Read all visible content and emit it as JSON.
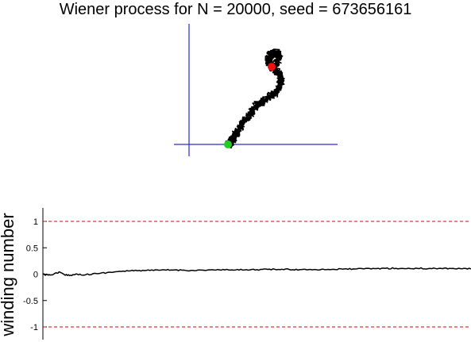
{
  "title": "Wiener process for N = 20000, seed = 673656161",
  "chart_data": [
    {
      "type": "line",
      "title": "Wiener process for N = 20000, seed = 673656161",
      "xlabel": "",
      "ylabel": "",
      "axes": "crosshair at origin, no ticks",
      "series": [
        {
          "description": "2D random walk path",
          "color": "#000000",
          "points": [
            [
              0.0,
              0.0
            ],
            [
              0.1,
              0.05
            ],
            [
              0.2,
              0.2
            ],
            [
              0.35,
              0.45
            ],
            [
              0.55,
              0.8
            ],
            [
              0.8,
              1.2
            ],
            [
              1.1,
              1.55
            ],
            [
              1.35,
              1.95
            ],
            [
              1.65,
              2.3
            ],
            [
              1.95,
              2.55
            ],
            [
              2.35,
              2.75
            ],
            [
              2.75,
              3.0
            ],
            [
              2.95,
              3.35
            ],
            [
              3.05,
              3.75
            ],
            [
              2.95,
              4.1
            ],
            [
              2.7,
              4.35
            ],
            [
              2.45,
              4.6
            ],
            [
              2.3,
              4.95
            ],
            [
              2.45,
              5.25
            ],
            [
              2.75,
              5.4
            ],
            [
              2.95,
              5.2
            ],
            [
              2.85,
              4.85
            ],
            [
              2.7,
              4.55
            ],
            [
              2.5,
              4.55
            ]
          ]
        }
      ],
      "markers": [
        {
          "name": "start",
          "color": "#22cc22",
          "point": [
            0.0,
            0.0
          ]
        },
        {
          "name": "end",
          "color": "#ee1111",
          "point": [
            2.5,
            4.55
          ]
        }
      ]
    },
    {
      "type": "line",
      "ylabel": "winding number",
      "xlabel": "",
      "ylim": [
        -1.2,
        1.2
      ],
      "xlim": [
        0,
        20000
      ],
      "yticks": [
        "1",
        "0.5",
        "0",
        "-0.5",
        "-1"
      ],
      "ytick_values": [
        1,
        0.5,
        0,
        -0.5,
        -1
      ],
      "reference_lines": [
        {
          "y": 1,
          "color": "#dd0000",
          "style": "dashed"
        },
        {
          "y": -1,
          "color": "#dd0000",
          "style": "dashed"
        }
      ],
      "series": [
        {
          "color": "#000000",
          "x": [
            0,
            250,
            500,
            750,
            1000,
            1300,
            1600,
            2000,
            2500,
            3000,
            3500,
            4000,
            4500,
            5000,
            5500,
            6000,
            6500,
            7000,
            7500,
            8000,
            8500,
            9000,
            9500,
            10000,
            10500,
            11000,
            11500,
            12000,
            12500,
            13000,
            13500,
            14000,
            14500,
            15000,
            15500,
            16000,
            16500,
            17000,
            17500,
            18000,
            18500,
            19000,
            19500,
            20000
          ],
          "y": [
            0.0,
            -0.02,
            0.0,
            0.04,
            -0.01,
            -0.02,
            0.0,
            -0.01,
            0.01,
            0.03,
            0.05,
            0.06,
            0.07,
            0.07,
            0.075,
            0.08,
            0.075,
            0.07,
            0.075,
            0.08,
            0.08,
            0.08,
            0.085,
            0.085,
            0.09,
            0.09,
            0.09,
            0.085,
            0.09,
            0.09,
            0.09,
            0.095,
            0.1,
            0.1,
            0.105,
            0.11,
            0.11,
            0.105,
            0.11,
            0.105,
            0.11,
            0.11,
            0.105,
            0.1
          ]
        }
      ]
    }
  ]
}
